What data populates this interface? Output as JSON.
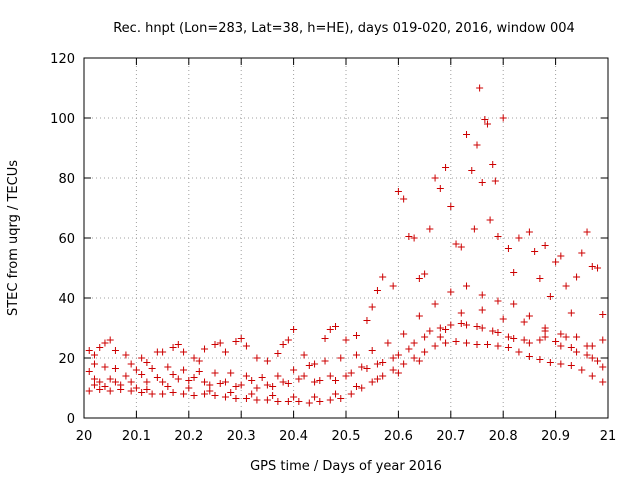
{
  "chart_data": {
    "type": "scatter",
    "title": "Rec. hnpt (Lon=283, Lat=38, h=HE), days 019-020, 2016, window 004",
    "xlabel": "GPS time / Days of year 2016",
    "ylabel": "STEC from uqrg / TECUs",
    "xlim": [
      20,
      21
    ],
    "ylim": [
      0,
      120
    ],
    "x_ticks": [
      20,
      20.1,
      20.2,
      20.3,
      20.4,
      20.5,
      20.6,
      20.7,
      20.8,
      20.9,
      21
    ],
    "x_tick_labels": [
      "20",
      "20.1",
      "20.2",
      "20.3",
      "20.4",
      "20.5",
      "20.6",
      "20.7",
      "20.8",
      "20.9",
      "21"
    ],
    "y_ticks": [
      0,
      20,
      40,
      60,
      80,
      100,
      120
    ],
    "y_tick_labels": [
      "0",
      "20",
      "40",
      "60",
      "80",
      "100",
      "120"
    ],
    "grid": true,
    "marker": "+",
    "color": "#cc0000",
    "series": [
      {
        "name": "STEC",
        "points": [
          [
            20.01,
            22.5
          ],
          [
            20.02,
            21
          ],
          [
            20.03,
            23.5
          ],
          [
            20.04,
            25
          ],
          [
            20.05,
            26
          ],
          [
            20.06,
            22.5
          ],
          [
            20.08,
            21
          ],
          [
            20.09,
            18
          ],
          [
            20.11,
            20
          ],
          [
            20.12,
            18.5
          ],
          [
            20.14,
            22
          ],
          [
            20.15,
            22
          ],
          [
            20.17,
            23.5
          ],
          [
            20.18,
            24.5
          ],
          [
            20.19,
            22
          ],
          [
            20.21,
            20
          ],
          [
            20.22,
            19
          ],
          [
            20.23,
            23
          ],
          [
            20.25,
            24.5
          ],
          [
            20.26,
            25
          ],
          [
            20.27,
            22
          ],
          [
            20.29,
            25.5
          ],
          [
            20.3,
            26.5
          ],
          [
            20.31,
            24
          ],
          [
            20.33,
            20
          ],
          [
            20.35,
            19
          ],
          [
            20.37,
            21.5
          ],
          [
            20.38,
            24.5
          ],
          [
            20.39,
            26
          ],
          [
            20.4,
            29.5
          ],
          [
            20.42,
            21
          ],
          [
            20.44,
            18
          ],
          [
            20.46,
            26.5
          ],
          [
            20.47,
            29.5
          ],
          [
            20.48,
            30.5
          ],
          [
            20.5,
            26
          ],
          [
            20.52,
            27.5
          ],
          [
            20.54,
            32.5
          ],
          [
            20.55,
            37
          ],
          [
            20.56,
            42.5
          ],
          [
            20.57,
            47
          ],
          [
            20.59,
            44
          ],
          [
            20.6,
            75.5
          ],
          [
            20.61,
            73
          ],
          [
            20.62,
            60.5
          ],
          [
            20.63,
            60
          ],
          [
            20.64,
            46.5
          ],
          [
            20.65,
            48
          ],
          [
            20.66,
            63
          ],
          [
            20.67,
            80
          ],
          [
            20.68,
            76.5
          ],
          [
            20.69,
            83.5
          ],
          [
            20.7,
            70.5
          ],
          [
            20.71,
            58
          ],
          [
            20.72,
            57
          ],
          [
            20.73,
            94.5
          ],
          [
            20.74,
            82.5
          ],
          [
            20.745,
            63
          ],
          [
            20.75,
            91
          ],
          [
            20.755,
            110
          ],
          [
            20.76,
            78.5
          ],
          [
            20.765,
            99.5
          ],
          [
            20.77,
            98
          ],
          [
            20.775,
            66
          ],
          [
            20.78,
            84.5
          ],
          [
            20.785,
            79
          ],
          [
            20.79,
            60.5
          ],
          [
            20.8,
            100
          ],
          [
            20.81,
            56.5
          ],
          [
            20.82,
            48.5
          ],
          [
            20.83,
            60
          ],
          [
            20.85,
            62
          ],
          [
            20.86,
            55.5
          ],
          [
            20.87,
            46.5
          ],
          [
            20.88,
            57.5
          ],
          [
            20.89,
            40.5
          ],
          [
            20.9,
            52
          ],
          [
            20.91,
            54
          ],
          [
            20.92,
            44
          ],
          [
            20.93,
            35
          ],
          [
            20.94,
            47
          ],
          [
            20.95,
            55
          ],
          [
            20.96,
            62
          ],
          [
            20.97,
            50.5
          ],
          [
            20.98,
            50
          ],
          [
            20.99,
            34.5
          ],
          [
            20.01,
            15.5
          ],
          [
            20.02,
            13
          ],
          [
            20.03,
            12
          ],
          [
            20.05,
            13
          ],
          [
            20.06,
            12
          ],
          [
            20.08,
            14
          ],
          [
            20.09,
            12
          ],
          [
            20.11,
            14.5
          ],
          [
            20.12,
            12
          ],
          [
            20.14,
            13.5
          ],
          [
            20.15,
            12
          ],
          [
            20.17,
            14.5
          ],
          [
            20.18,
            13
          ],
          [
            20.2,
            12.5
          ],
          [
            20.21,
            13.5
          ],
          [
            20.23,
            12
          ],
          [
            20.24,
            11
          ],
          [
            20.26,
            11.5
          ],
          [
            20.27,
            12
          ],
          [
            20.29,
            10.5
          ],
          [
            20.3,
            11
          ],
          [
            20.32,
            12.5
          ],
          [
            20.33,
            10
          ],
          [
            20.35,
            11
          ],
          [
            20.36,
            10.5
          ],
          [
            20.38,
            12
          ],
          [
            20.39,
            11.5
          ],
          [
            20.41,
            13
          ],
          [
            20.42,
            14
          ],
          [
            20.44,
            12
          ],
          [
            20.45,
            12.5
          ],
          [
            20.47,
            14
          ],
          [
            20.48,
            12.5
          ],
          [
            20.5,
            14
          ],
          [
            20.51,
            15
          ],
          [
            20.53,
            17
          ],
          [
            20.54,
            16.5
          ],
          [
            20.56,
            18
          ],
          [
            20.57,
            18.5
          ],
          [
            20.59,
            20
          ],
          [
            20.6,
            21
          ],
          [
            20.62,
            23
          ],
          [
            20.63,
            25
          ],
          [
            20.65,
            27
          ],
          [
            20.66,
            29
          ],
          [
            20.68,
            30
          ],
          [
            20.69,
            29.5
          ],
          [
            20.7,
            31
          ],
          [
            20.72,
            31.5
          ],
          [
            20.73,
            31
          ],
          [
            20.75,
            30.5
          ],
          [
            20.76,
            30
          ],
          [
            20.78,
            29
          ],
          [
            20.79,
            28.5
          ],
          [
            20.81,
            27
          ],
          [
            20.82,
            26.5
          ],
          [
            20.84,
            26
          ],
          [
            20.85,
            25
          ],
          [
            20.87,
            26
          ],
          [
            20.88,
            27
          ],
          [
            20.9,
            25.5
          ],
          [
            20.91,
            24
          ],
          [
            20.93,
            23.5
          ],
          [
            20.94,
            22
          ],
          [
            20.96,
            21
          ],
          [
            20.97,
            20
          ],
          [
            20.98,
            19
          ],
          [
            20.99,
            17
          ],
          [
            20.01,
            9
          ],
          [
            20.03,
            9.5
          ],
          [
            20.05,
            9
          ],
          [
            20.07,
            9.5
          ],
          [
            20.09,
            9
          ],
          [
            20.11,
            8.5
          ],
          [
            20.13,
            8
          ],
          [
            20.15,
            8
          ],
          [
            20.17,
            8.5
          ],
          [
            20.19,
            8
          ],
          [
            20.21,
            7.5
          ],
          [
            20.23,
            8
          ],
          [
            20.25,
            7.5
          ],
          [
            20.27,
            7
          ],
          [
            20.29,
            6.5
          ],
          [
            20.31,
            6.5
          ],
          [
            20.33,
            6
          ],
          [
            20.35,
            6
          ],
          [
            20.37,
            5.5
          ],
          [
            20.39,
            5.5
          ],
          [
            20.41,
            5.5
          ],
          [
            20.43,
            5
          ],
          [
            20.45,
            5.5
          ],
          [
            20.47,
            6
          ],
          [
            20.49,
            6.5
          ],
          [
            20.51,
            8
          ],
          [
            20.53,
            10
          ],
          [
            20.55,
            12
          ],
          [
            20.57,
            14
          ],
          [
            20.59,
            16
          ],
          [
            20.61,
            18
          ],
          [
            20.63,
            20
          ],
          [
            20.65,
            22
          ],
          [
            20.67,
            24
          ],
          [
            20.69,
            25
          ],
          [
            20.71,
            25.5
          ],
          [
            20.73,
            25
          ],
          [
            20.75,
            24.5
          ],
          [
            20.77,
            24.5
          ],
          [
            20.79,
            24
          ],
          [
            20.81,
            23.5
          ],
          [
            20.83,
            22
          ],
          [
            20.85,
            20.5
          ],
          [
            20.87,
            19.5
          ],
          [
            20.89,
            18.5
          ],
          [
            20.91,
            18
          ],
          [
            20.93,
            17.5
          ],
          [
            20.95,
            16
          ],
          [
            20.97,
            14
          ],
          [
            20.99,
            12
          ],
          [
            20.02,
            18
          ],
          [
            20.04,
            17
          ],
          [
            20.06,
            16.5
          ],
          [
            20.1,
            16
          ],
          [
            20.13,
            16.5
          ],
          [
            20.16,
            17
          ],
          [
            20.19,
            16
          ],
          [
            20.22,
            15.5
          ],
          [
            20.25,
            15
          ],
          [
            20.28,
            15
          ],
          [
            20.31,
            14
          ],
          [
            20.34,
            13.5
          ],
          [
            20.37,
            14
          ],
          [
            20.4,
            16
          ],
          [
            20.43,
            17.5
          ],
          [
            20.46,
            19
          ],
          [
            20.49,
            20
          ],
          [
            20.52,
            21
          ],
          [
            20.55,
            22.5
          ],
          [
            20.58,
            25
          ],
          [
            20.61,
            28
          ],
          [
            20.64,
            34
          ],
          [
            20.67,
            38
          ],
          [
            20.7,
            42
          ],
          [
            20.73,
            44
          ],
          [
            20.76,
            41
          ],
          [
            20.79,
            39
          ],
          [
            20.82,
            38
          ],
          [
            20.85,
            34
          ],
          [
            20.88,
            30
          ],
          [
            20.91,
            28
          ],
          [
            20.94,
            27
          ],
          [
            20.97,
            24
          ],
          [
            20.99,
            26
          ],
          [
            20.02,
            11
          ],
          [
            20.04,
            10.5
          ],
          [
            20.07,
            11
          ],
          [
            20.1,
            10
          ],
          [
            20.12,
            9.5
          ],
          [
            20.16,
            10.5
          ],
          [
            20.2,
            10
          ],
          [
            20.24,
            9
          ],
          [
            20.28,
            8.5
          ],
          [
            20.32,
            8
          ],
          [
            20.36,
            7.5
          ],
          [
            20.4,
            7
          ],
          [
            20.44,
            7
          ],
          [
            20.48,
            8
          ],
          [
            20.52,
            10.5
          ],
          [
            20.56,
            13
          ],
          [
            20.6,
            15
          ],
          [
            20.64,
            19
          ],
          [
            20.68,
            27
          ],
          [
            20.72,
            35
          ],
          [
            20.76,
            36
          ],
          [
            20.8,
            33
          ],
          [
            20.84,
            32
          ],
          [
            20.88,
            29
          ],
          [
            20.92,
            27
          ],
          [
            20.96,
            24
          ]
        ]
      }
    ]
  }
}
